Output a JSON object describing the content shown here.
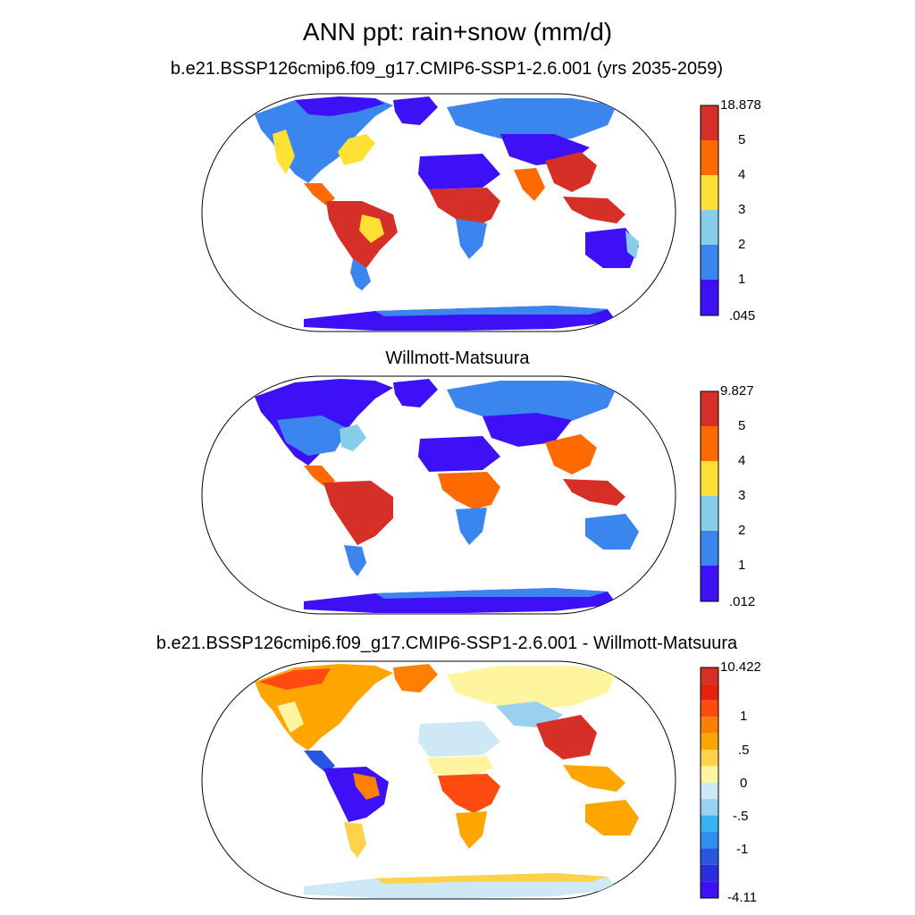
{
  "figure": {
    "title": "ANN ppt: rain+snow (mm/d)"
  },
  "panels": [
    {
      "title": "b.e21.BSSP126cmip6.f09_g17.CMIP6-SSP1-2.6.001 (yrs 2035-2059)",
      "colorbar": {
        "labels": [
          "18.878",
          "5",
          "4",
          "3",
          "2",
          "1",
          ".045"
        ],
        "colors": [
          "#d62f27",
          "#ff6a00",
          "#ffe135",
          "#87ceeb",
          "#3b85ef",
          "#3d10f5"
        ]
      }
    },
    {
      "title": "Willmott-Matsuura",
      "colorbar": {
        "labels": [
          "9.827",
          "5",
          "4",
          "3",
          "2",
          "1",
          ".012"
        ],
        "colors": [
          "#d62f27",
          "#ff6a00",
          "#ffe135",
          "#87ceeb",
          "#3b85ef",
          "#3d10f5"
        ]
      }
    },
    {
      "title": "b.e21.BSSP126cmip6.f09_g17.CMIP6-SSP1-2.6.001 - Willmott-Matsuura",
      "colorbar": {
        "labels": [
          "10.422",
          "1",
          ".5",
          "0",
          "-.5",
          "-1",
          "-4.11"
        ],
        "colors": [
          "#d62f27",
          "#e8200f",
          "#ff4a10",
          "#ff7f00",
          "#ffa500",
          "#ffd24a",
          "#fff5a0",
          "#cfe8f5",
          "#9ad0f0",
          "#39b3f2",
          "#2f8ef0",
          "#2a55e0",
          "#2a2fdc",
          "#3d10f5"
        ]
      }
    }
  ]
}
